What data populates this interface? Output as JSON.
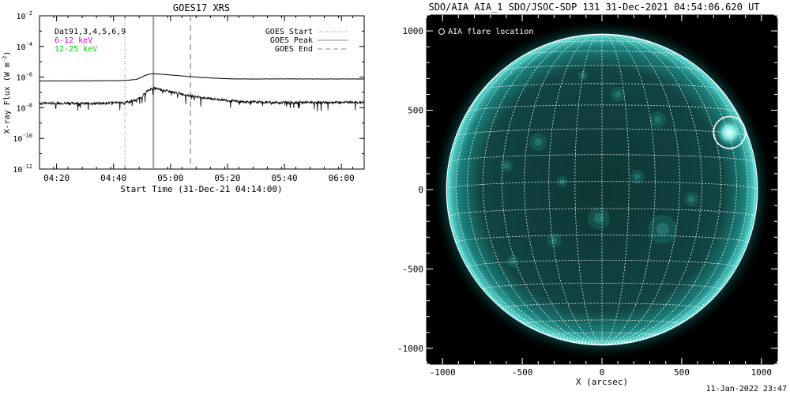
{
  "footer_timestamp": "11-Jan-2022 23:47",
  "colors": {
    "background": "#ffffff",
    "axis": "#000000",
    "legend_6_12": "#e000e0",
    "legend_12_25": "#00d000",
    "sun_teal": "#1fb6b0",
    "grid": "#ffffff",
    "start_line": "#9a9a9a",
    "peak_line": "#9a9a9a",
    "end_line": "#9a9a9a"
  },
  "chart_data": [
    {
      "id": "goes",
      "type": "line",
      "title": "GOES17 XRS",
      "xlabel": "Start Time (31-Dec-21 04:14:00)",
      "ylabel": "X-ray Flux (W m",
      "ylabel_sup": "-2",
      "ylabel_close": ")",
      "xlim_minutes": [
        0,
        114
      ],
      "x_ticks": [
        {
          "label": "04:20",
          "min": 6
        },
        {
          "label": "04:40",
          "min": 26
        },
        {
          "label": "05:00",
          "min": 46
        },
        {
          "label": "05:20",
          "min": 66
        },
        {
          "label": "05:40",
          "min": 86
        },
        {
          "label": "06:00",
          "min": 106
        }
      ],
      "y_log_range": [
        -12,
        -2
      ],
      "y_ticks": [
        {
          "base": "10",
          "exp": "-2",
          "log": -2
        },
        {
          "base": "10",
          "exp": "-4",
          "log": -4
        },
        {
          "base": "10",
          "exp": "-6",
          "log": -6
        },
        {
          "base": "10",
          "exp": "-8",
          "log": -8
        },
        {
          "base": "10",
          "exp": "-10",
          "log": -10
        },
        {
          "base": "10",
          "exp": "-12",
          "log": -12
        }
      ],
      "legend_left": {
        "dataset": "Dat91,3,4,5,6,9",
        "band_6_12": "6-12 keV",
        "band_12_25": "12-25 keV"
      },
      "legend_right": {
        "start": "GOES Start",
        "peak": "GOES Peak",
        "end": "GOES End"
      },
      "events_minutes": {
        "start": 30,
        "peak": 40,
        "end": 53
      },
      "series": [
        {
          "band": "long",
          "style": "solid",
          "x_minutes": [
            0,
            10,
            20,
            30,
            34,
            36,
            37,
            38,
            39,
            40,
            42,
            46,
            50,
            54,
            60,
            66,
            70,
            80,
            90,
            100,
            110,
            114
          ],
          "log_flux": [
            -6.25,
            -6.25,
            -6.24,
            -6.22,
            -6.15,
            -6.0,
            -5.9,
            -5.85,
            -5.8,
            -5.78,
            -5.8,
            -5.86,
            -5.92,
            -5.99,
            -6.05,
            -6.1,
            -6.12,
            -6.12,
            -6.12,
            -6.12,
            -6.12,
            -6.12
          ]
        },
        {
          "band": "short",
          "style": "noisy",
          "x_minutes": [
            0,
            10,
            20,
            30,
            34,
            36,
            37,
            38,
            39,
            40,
            42,
            46,
            50,
            54,
            60,
            66,
            70,
            80,
            90,
            100,
            110,
            114
          ],
          "log_flux": [
            -7.7,
            -7.7,
            -7.72,
            -7.65,
            -7.5,
            -7.25,
            -7.05,
            -6.9,
            -6.78,
            -6.72,
            -6.8,
            -6.95,
            -7.1,
            -7.25,
            -7.4,
            -7.52,
            -7.6,
            -7.65,
            -7.65,
            -7.65,
            -7.65,
            -7.65
          ]
        }
      ]
    },
    {
      "id": "aia",
      "type": "image",
      "title": "SDO/AIA AIA_1 SDO/JSOC-SDP 131 31-Dec-2021 04:54:06.620 UT",
      "xlabel": "X (arcsec)",
      "xlim": [
        -1100,
        1100
      ],
      "ylim": [
        -1100,
        1100
      ],
      "x_ticks": [
        "-1000",
        "-500",
        "0",
        "500",
        "1000"
      ],
      "y_ticks": [
        "1000",
        "500",
        "0",
        "-500",
        "-1000"
      ],
      "x_tick_values": [
        -1000,
        -500,
        0,
        500,
        1000
      ],
      "y_tick_values": [
        1000,
        500,
        0,
        -500,
        -1000
      ],
      "solar_radius_arcsec": 975,
      "grid_step_deg": 10,
      "flare_location": {
        "label": "AIA flare location",
        "x": 800,
        "y": 360,
        "radius": 100
      }
    }
  ]
}
